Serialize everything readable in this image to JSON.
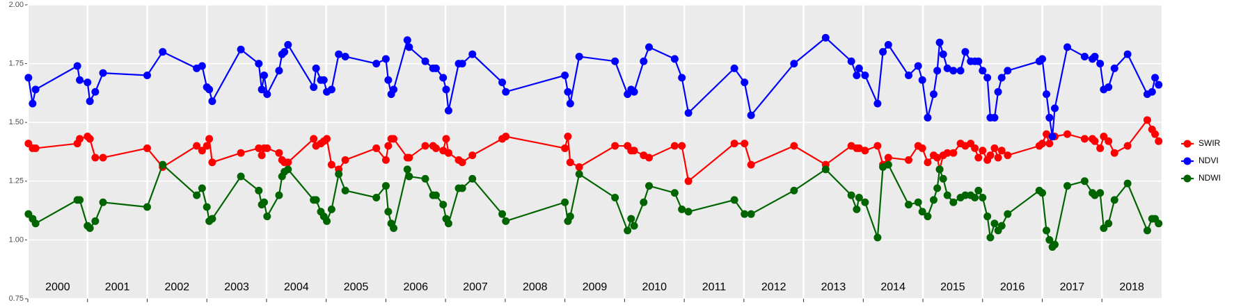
{
  "chart_data": {
    "type": "line",
    "x": [
      2000.01,
      2000.08,
      2000.13,
      2000.83,
      2000.87,
      2001.0,
      2001.04,
      2001.13,
      2001.26,
      2002.0,
      2002.26,
      2002.83,
      2002.92,
      2003.0,
      2003.04,
      2003.09,
      2003.57,
      2003.87,
      2003.92,
      2003.96,
      2004.01,
      2004.21,
      2004.26,
      2004.3,
      2004.36,
      2004.79,
      2004.83,
      2004.91,
      2004.96,
      2005.01,
      2005.09,
      2005.21,
      2005.32,
      2005.84,
      2006.0,
      2006.04,
      2006.09,
      2006.13,
      2006.36,
      2006.39,
      2006.66,
      2006.79,
      2006.84,
      2006.96,
      2007.01,
      2007.05,
      2007.22,
      2007.28,
      2007.45,
      2007.95,
      2008.01,
      2009.0,
      2009.05,
      2009.09,
      2009.24,
      2009.84,
      2010.05,
      2010.11,
      2010.16,
      2010.32,
      2010.41,
      2010.84,
      2010.96,
      2011.07,
      2011.84,
      2012.01,
      2012.12,
      2012.84,
      2013.37,
      2013.8,
      2013.89,
      2013.93,
      2014.03,
      2014.24,
      2014.33,
      2014.42,
      2014.76,
      2014.92,
      2014.99,
      2015.08,
      2015.18,
      2015.24,
      2015.28,
      2015.34,
      2015.41,
      2015.51,
      2015.63,
      2015.71,
      2015.8,
      2015.87,
      2015.93,
      2016.0,
      2016.08,
      2016.13,
      2016.2,
      2016.26,
      2016.32,
      2016.42,
      2016.95,
      2017.0,
      2017.07,
      2017.12,
      2017.17,
      2017.21,
      2017.42,
      2017.71,
      2017.84,
      2017.88,
      2017.97,
      2018.03,
      2018.11,
      2018.21,
      2018.43,
      2018.76,
      2018.84,
      2018.89,
      2018.95
    ],
    "series": [
      {
        "name": "SWIR",
        "color": "#ff0000",
        "values": [
          1.41,
          1.39,
          1.39,
          1.41,
          1.43,
          1.44,
          1.43,
          1.35,
          1.35,
          1.39,
          1.31,
          1.4,
          1.38,
          1.4,
          1.43,
          1.33,
          1.37,
          1.39,
          1.36,
          1.39,
          1.39,
          1.37,
          1.34,
          1.33,
          1.33,
          1.43,
          1.4,
          1.41,
          1.42,
          1.43,
          1.32,
          1.3,
          1.34,
          1.39,
          1.34,
          1.4,
          1.43,
          1.43,
          1.35,
          1.35,
          1.4,
          1.4,
          1.39,
          1.38,
          1.43,
          1.37,
          1.34,
          1.33,
          1.36,
          1.43,
          1.44,
          1.39,
          1.44,
          1.33,
          1.31,
          1.4,
          1.4,
          1.38,
          1.38,
          1.36,
          1.35,
          1.4,
          1.4,
          1.25,
          1.41,
          1.41,
          1.32,
          1.4,
          1.32,
          1.4,
          1.39,
          1.39,
          1.38,
          1.4,
          1.32,
          1.35,
          1.34,
          1.4,
          1.39,
          1.33,
          1.36,
          1.35,
          1.3,
          1.36,
          1.37,
          1.37,
          1.41,
          1.4,
          1.41,
          1.39,
          1.35,
          1.38,
          1.34,
          1.36,
          1.39,
          1.35,
          1.38,
          1.36,
          1.4,
          1.41,
          1.45,
          1.41,
          1.44,
          1.44,
          1.45,
          1.43,
          1.43,
          1.42,
          1.39,
          1.44,
          1.42,
          1.37,
          1.4,
          1.51,
          1.47,
          1.45,
          1.42
        ]
      },
      {
        "name": "NDVI",
        "color": "#0000ff",
        "values": [
          1.69,
          1.58,
          1.64,
          1.74,
          1.68,
          1.67,
          1.59,
          1.63,
          1.71,
          1.7,
          1.8,
          1.73,
          1.74,
          1.65,
          1.64,
          1.59,
          1.81,
          1.75,
          1.64,
          1.7,
          1.62,
          1.72,
          1.79,
          1.8,
          1.83,
          1.65,
          1.73,
          1.68,
          1.68,
          1.63,
          1.64,
          1.79,
          1.78,
          1.75,
          1.77,
          1.68,
          1.62,
          1.64,
          1.85,
          1.82,
          1.76,
          1.73,
          1.73,
          1.69,
          1.64,
          1.55,
          1.75,
          1.75,
          1.79,
          1.67,
          1.63,
          1.7,
          1.63,
          1.58,
          1.78,
          1.76,
          1.62,
          1.64,
          1.63,
          1.76,
          1.82,
          1.77,
          1.69,
          1.54,
          1.73,
          1.67,
          1.53,
          1.75,
          1.86,
          1.76,
          1.7,
          1.73,
          1.7,
          1.58,
          1.8,
          1.83,
          1.7,
          1.74,
          1.68,
          1.52,
          1.62,
          1.72,
          1.84,
          1.79,
          1.73,
          1.72,
          1.72,
          1.8,
          1.76,
          1.76,
          1.76,
          1.72,
          1.69,
          1.52,
          1.52,
          1.63,
          1.69,
          1.72,
          1.76,
          1.77,
          1.62,
          1.52,
          1.44,
          1.56,
          1.82,
          1.78,
          1.77,
          1.78,
          1.75,
          1.64,
          1.65,
          1.73,
          1.79,
          1.62,
          1.63,
          1.69,
          1.66
        ]
      },
      {
        "name": "NDWI",
        "color": "#006400",
        "values": [
          1.11,
          1.09,
          1.07,
          1.17,
          1.17,
          1.06,
          1.05,
          1.08,
          1.16,
          1.14,
          1.32,
          1.19,
          1.22,
          1.14,
          1.08,
          1.09,
          1.27,
          1.21,
          1.15,
          1.16,
          1.1,
          1.19,
          1.27,
          1.29,
          1.3,
          1.17,
          1.17,
          1.12,
          1.1,
          1.08,
          1.13,
          1.28,
          1.21,
          1.18,
          1.23,
          1.12,
          1.07,
          1.05,
          1.3,
          1.27,
          1.26,
          1.19,
          1.19,
          1.15,
          1.09,
          1.07,
          1.22,
          1.22,
          1.26,
          1.11,
          1.08,
          1.16,
          1.08,
          1.1,
          1.28,
          1.18,
          1.04,
          1.09,
          1.06,
          1.16,
          1.23,
          1.2,
          1.13,
          1.12,
          1.17,
          1.11,
          1.11,
          1.21,
          1.3,
          1.19,
          1.13,
          1.18,
          1.16,
          1.01,
          1.31,
          1.32,
          1.15,
          1.16,
          1.12,
          1.1,
          1.17,
          1.22,
          1.3,
          1.26,
          1.19,
          1.16,
          1.18,
          1.19,
          1.19,
          1.18,
          1.21,
          1.18,
          1.1,
          1.01,
          1.07,
          1.04,
          1.06,
          1.11,
          1.21,
          1.2,
          1.04,
          1.0,
          0.97,
          0.98,
          1.23,
          1.25,
          1.2,
          1.19,
          1.2,
          1.05,
          1.07,
          1.17,
          1.24,
          1.04,
          1.09,
          1.09,
          1.07
        ]
      }
    ],
    "xlim": [
      2000,
      2019
    ],
    "xticks": [
      {
        "value": 2000,
        "label": "2000"
      },
      {
        "value": 2001,
        "label": "2001"
      },
      {
        "value": 2002,
        "label": "2002"
      },
      {
        "value": 2003,
        "label": "2003"
      },
      {
        "value": 2004,
        "label": "2004"
      },
      {
        "value": 2005,
        "label": "2005"
      },
      {
        "value": 2006,
        "label": "2006"
      },
      {
        "value": 2007,
        "label": "2007"
      },
      {
        "value": 2008,
        "label": "2008"
      },
      {
        "value": 2009,
        "label": "2009"
      },
      {
        "value": 2010,
        "label": "2010"
      },
      {
        "value": 2011,
        "label": "2011"
      },
      {
        "value": 2012,
        "label": "2012"
      },
      {
        "value": 2013,
        "label": "2013"
      },
      {
        "value": 2014,
        "label": "2014"
      },
      {
        "value": 2015,
        "label": "2015"
      },
      {
        "value": 2016,
        "label": "2016"
      },
      {
        "value": 2017,
        "label": "2017"
      },
      {
        "value": 2018,
        "label": "2018"
      }
    ],
    "ylim": [
      0.75,
      2.0
    ],
    "yticks": [
      {
        "value": 0.75,
        "label": "0.75"
      },
      {
        "value": 1.0,
        "label": "1.00"
      },
      {
        "value": 1.25,
        "label": "1.25"
      },
      {
        "value": 1.5,
        "label": "1.50"
      },
      {
        "value": 1.75,
        "label": "1.75"
      },
      {
        "value": 2.0,
        "label": "2.00"
      }
    ],
    "grid": true,
    "legend": "right"
  }
}
